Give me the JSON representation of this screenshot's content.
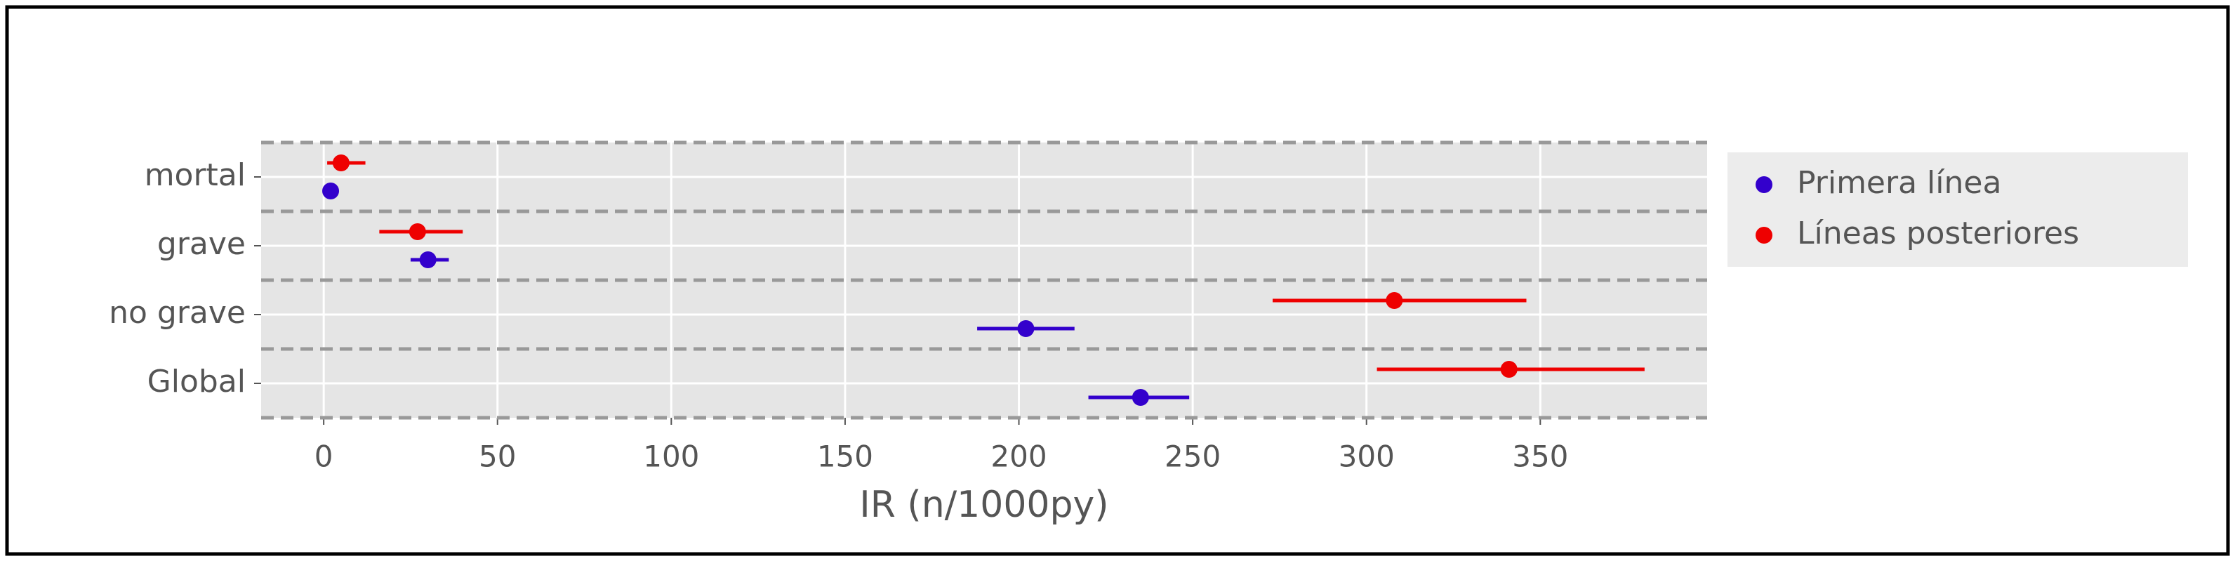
{
  "chart_data": {
    "type": "forest",
    "xlabel": "IR (n/1000py)",
    "categories": [
      "mortal",
      "grave",
      "no grave",
      "Global"
    ],
    "xlim": [
      -18,
      398
    ],
    "xticks": [
      0,
      50,
      100,
      150,
      200,
      250,
      300,
      350
    ],
    "grid": true,
    "legend_position": "outside right",
    "series": [
      {
        "name": "Primera línea",
        "color": "#3300cc",
        "values": [
          2,
          30,
          202,
          235
        ],
        "lower": [
          1,
          25,
          188,
          220
        ],
        "upper": [
          3,
          36,
          216,
          249
        ]
      },
      {
        "name": "Líneas posteriores",
        "color": "#ee0000",
        "values": [
          5,
          27,
          308,
          341
        ],
        "lower": [
          1,
          16,
          273,
          303
        ],
        "upper": [
          12,
          40,
          346,
          380
        ]
      }
    ]
  }
}
